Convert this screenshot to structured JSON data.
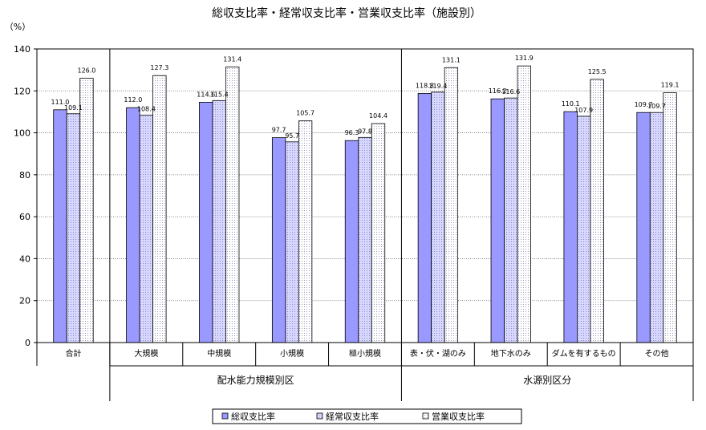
{
  "chart_data": {
    "type": "bar",
    "title": "総収支比率・経常収支比率・営業収支比率（施設別）",
    "ylabel": "（%）",
    "ylim": [
      0,
      140
    ],
    "yticks": [
      0,
      20,
      40,
      60,
      80,
      100,
      120,
      140
    ],
    "grid": true,
    "legend_position": "bottom",
    "categories": [
      "合計",
      "大規模",
      "中規模",
      "小規模",
      "極小規模",
      "表・伏・湖のみ",
      "地下水のみ",
      "ダムを有するもの",
      "その他"
    ],
    "groups": [
      {
        "label": "配水能力規模別区",
        "from": 1,
        "to": 4
      },
      {
        "label": "水源別区分",
        "from": 5,
        "to": 8
      }
    ],
    "series": [
      {
        "name": "総収支比率",
        "color": "#9999ff",
        "pattern": "solid",
        "values": [
          111.0,
          112.0,
          114.6,
          97.7,
          96.3,
          118.8,
          116.2,
          110.1,
          109.7
        ],
        "labels": [
          "111.0",
          "112.0",
          "114.6",
          "97.7",
          "96.3",
          "118.8",
          "116.2",
          "110.1",
          "109.7"
        ]
      },
      {
        "name": "経常収支比率",
        "color": "#ccccff",
        "pattern": "dots",
        "values": [
          109.1,
          108.4,
          115.4,
          95.7,
          97.8,
          119.4,
          116.6,
          107.9,
          109.7
        ],
        "labels": [
          "109.1",
          "108.4",
          "115.4",
          "95.7",
          "97.8",
          "119.4",
          "116.6",
          "107.9",
          "109.7"
        ]
      },
      {
        "name": "営業収支比率",
        "color": "#ffffff",
        "pattern": "fine-dots",
        "values": [
          126.0,
          127.3,
          131.4,
          105.7,
          104.4,
          131.1,
          131.9,
          125.5,
          119.1
        ],
        "labels": [
          "126.0",
          "127.3",
          "131.4",
          "105.7",
          "104.4",
          "131.1",
          "131.9",
          "125.5",
          "119.1"
        ]
      }
    ]
  }
}
